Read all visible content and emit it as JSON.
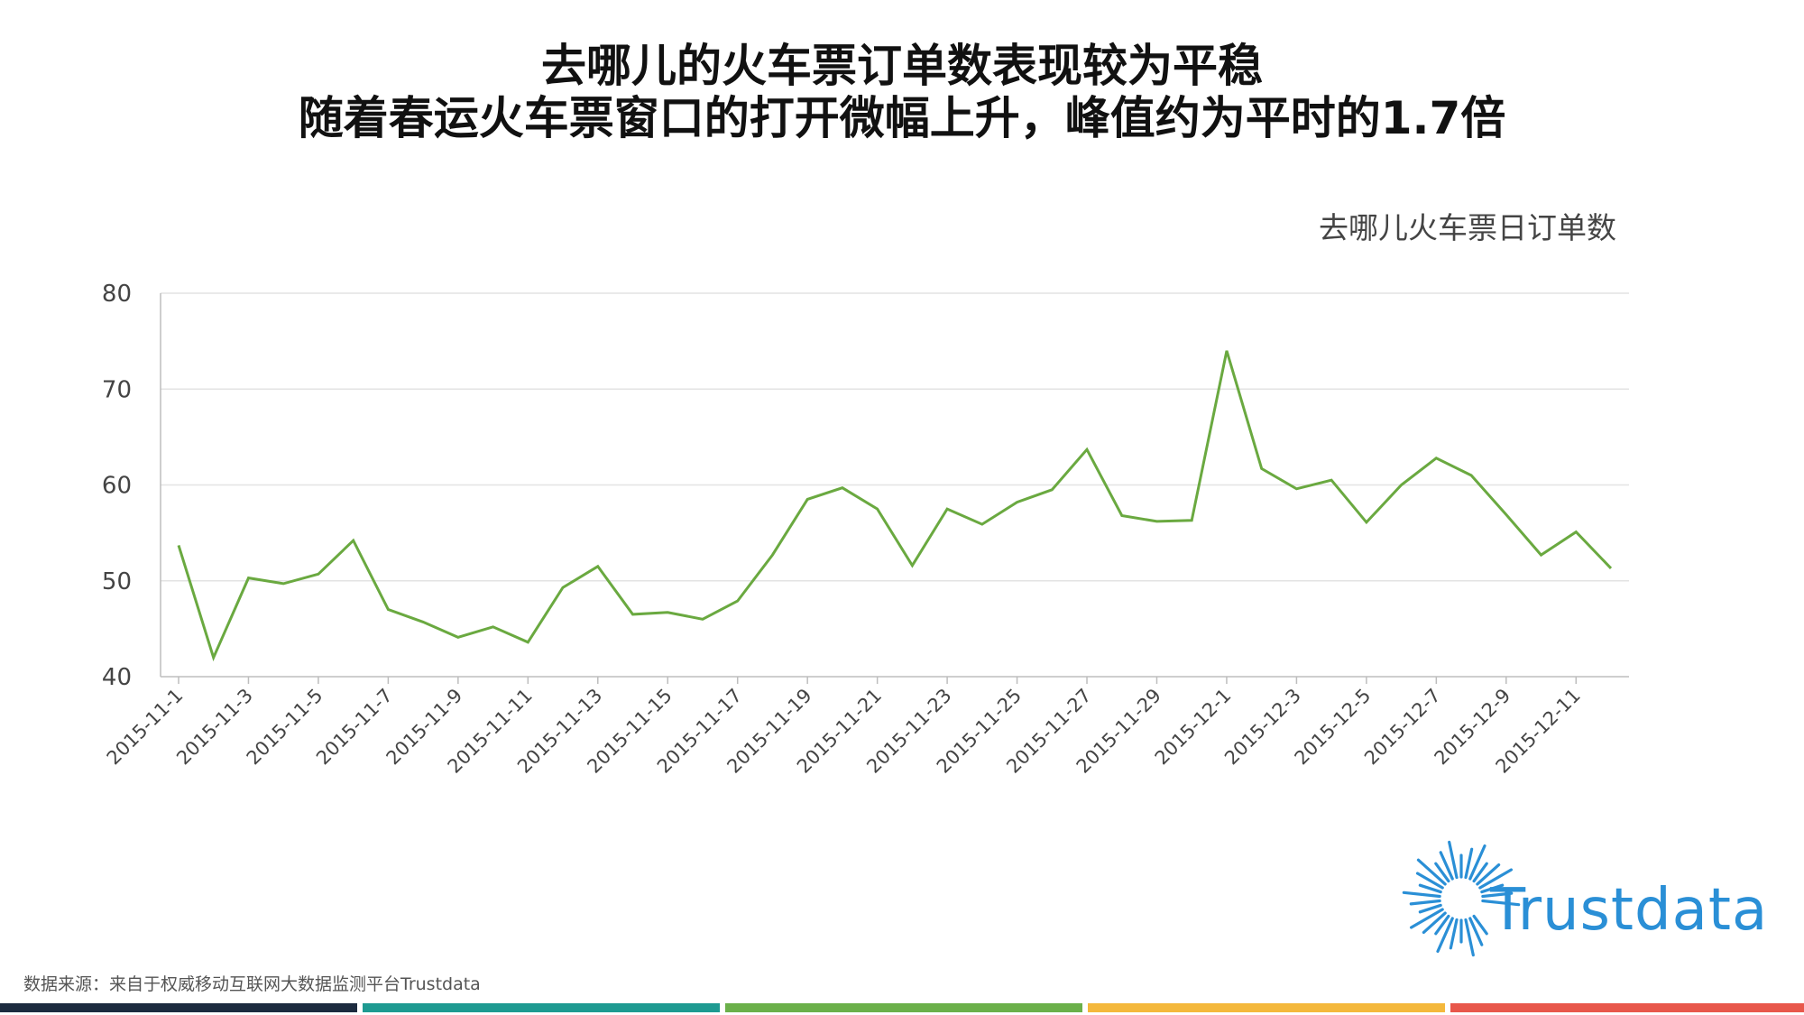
{
  "title_line1": "去哪儿的火车票订单数表现较为平稳",
  "title_line2": "随着春运火车票窗口的打开微幅上升，峰值约为平时的1.7倍",
  "source_text": "数据来源：来自于权威移动互联网大数据监测平台Trustdata",
  "logo_text": "Trustdata",
  "colors": {
    "line": "#6aa940",
    "bars": [
      "#1c2b3f",
      "#1e9a91",
      "#6bb04a",
      "#f4b83c",
      "#e8574b"
    ],
    "logo": "#2a8fd6"
  },
  "chart_data": {
    "type": "line",
    "legend_text": "去哪儿火车票日订单数",
    "ylim": [
      40,
      80
    ],
    "yticks": [
      40,
      50,
      60,
      70,
      80
    ],
    "grid": true,
    "x": [
      "2015-11-1",
      "2015-11-2",
      "2015-11-3",
      "2015-11-4",
      "2015-11-5",
      "2015-11-6",
      "2015-11-7",
      "2015-11-8",
      "2015-11-9",
      "2015-11-10",
      "2015-11-11",
      "2015-11-12",
      "2015-11-13",
      "2015-11-14",
      "2015-11-15",
      "2015-11-16",
      "2015-11-17",
      "2015-11-18",
      "2015-11-19",
      "2015-11-20",
      "2015-11-21",
      "2015-11-22",
      "2015-11-23",
      "2015-11-24",
      "2015-11-25",
      "2015-11-26",
      "2015-11-27",
      "2015-11-28",
      "2015-11-29",
      "2015-11-30",
      "2015-12-1",
      "2015-12-2",
      "2015-12-3",
      "2015-12-4",
      "2015-12-5",
      "2015-12-6",
      "2015-12-7",
      "2015-12-8",
      "2015-12-9",
      "2015-12-10",
      "2015-12-11",
      "2015-12-12"
    ],
    "xtick_labels": [
      "2015-11-1",
      "2015-11-3",
      "2015-11-5",
      "2015-11-7",
      "2015-11-9",
      "2015-11-11",
      "2015-11-13",
      "2015-11-15",
      "2015-11-17",
      "2015-11-19",
      "2015-11-21",
      "2015-11-23",
      "2015-11-25",
      "2015-11-27",
      "2015-11-29",
      "2015-12-1",
      "2015-12-3",
      "2015-12-5",
      "2015-12-7",
      "2015-12-9",
      "2015-12-11"
    ],
    "values": [
      53.7,
      42.0,
      50.3,
      49.7,
      50.7,
      54.2,
      47.0,
      45.7,
      44.1,
      45.2,
      43.6,
      49.3,
      51.5,
      46.5,
      46.7,
      46.0,
      47.9,
      52.7,
      58.5,
      59.7,
      57.5,
      51.6,
      57.5,
      55.9,
      58.2,
      59.5,
      63.7,
      56.8,
      56.2,
      56.3,
      74.0,
      61.7,
      59.6,
      60.5,
      56.1,
      60.0,
      62.8,
      61.0,
      56.9,
      52.7,
      55.1,
      51.3
    ]
  }
}
